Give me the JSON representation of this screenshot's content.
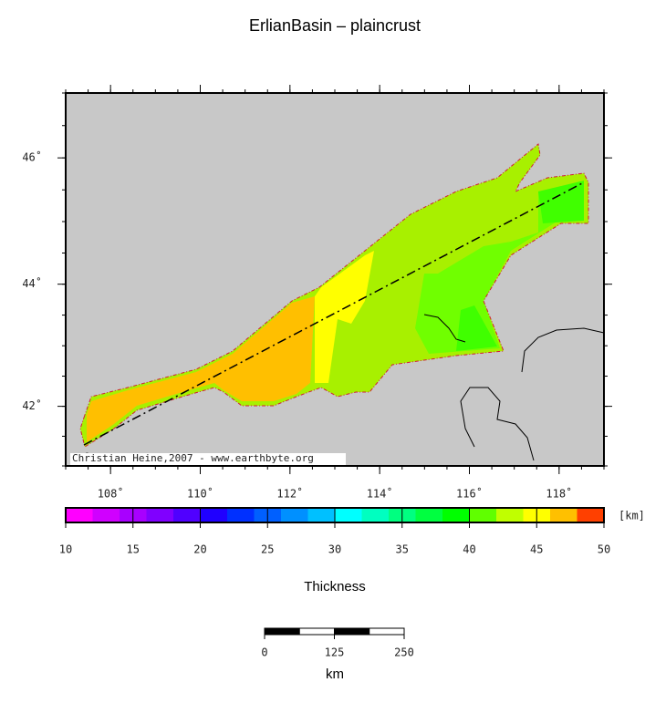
{
  "chart_data": {
    "type": "map",
    "title": "ErlianBasin – plaincrust",
    "xlim": [
      107,
      119
    ],
    "ylim": [
      41,
      47
    ],
    "xticks": [
      {
        "value": 108,
        "label": "108˚"
      },
      {
        "value": 110,
        "label": "110˚"
      },
      {
        "value": 112,
        "label": "112˚"
      },
      {
        "value": 114,
        "label": "114˚"
      },
      {
        "value": 116,
        "label": "116˚"
      },
      {
        "value": 118,
        "label": "118˚"
      }
    ],
    "yticks": [
      {
        "value": 42,
        "label": "42˚"
      },
      {
        "value": 44,
        "label": "44˚"
      },
      {
        "value": 46,
        "label": "46˚"
      }
    ],
    "credit": "Christian Heine,2007 - www.earthbyte.org",
    "colorbar": {
      "range": [
        10,
        50
      ],
      "ticks": [
        10,
        15,
        20,
        25,
        30,
        35,
        40,
        45,
        50
      ],
      "unit": "[km]",
      "label": "Thickness",
      "colors": [
        "#ff00ff",
        "#d000ff",
        "#a800ff",
        "#8000ff",
        "#5000ff",
        "#2000ff",
        "#0030ff",
        "#0060ff",
        "#0090ff",
        "#00c0ff",
        "#00ffff",
        "#00ffc0",
        "#00ff80",
        "#00ff40",
        "#00ff00",
        "#60ff00",
        "#c0ff00",
        "#ffff00",
        "#ffc000",
        "#ff4000"
      ]
    },
    "scale_bar": {
      "ticks": [
        0,
        125,
        250
      ],
      "unit": "km"
    }
  }
}
